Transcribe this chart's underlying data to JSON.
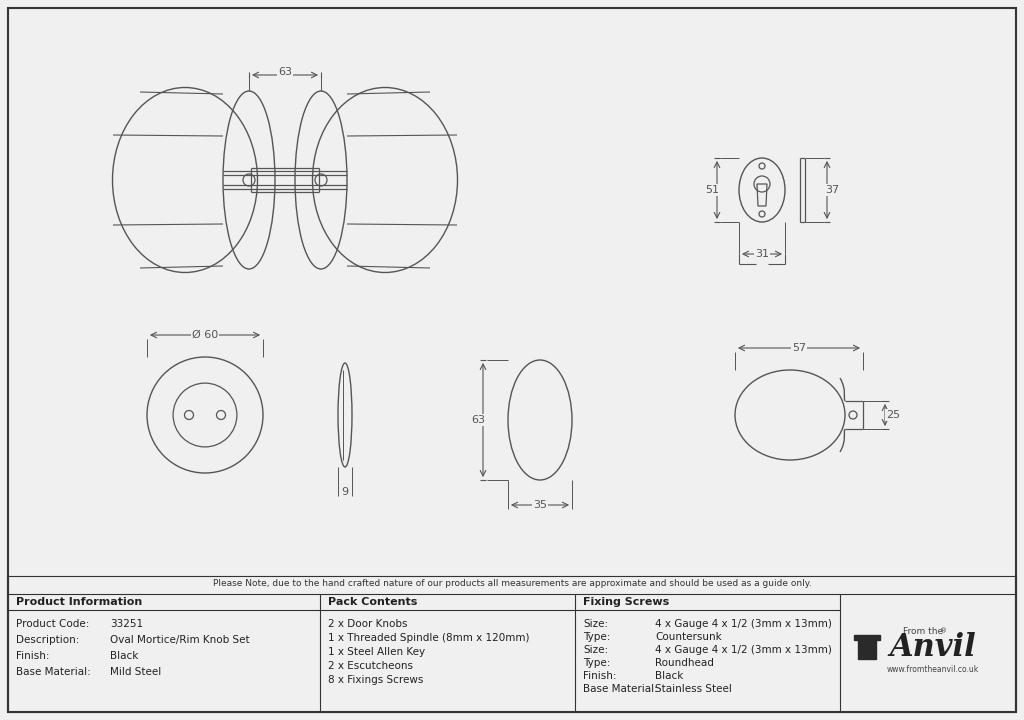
{
  "bg_color": "#f0f0f0",
  "line_color": "#555555",
  "border_color": "#333333",
  "note": "Please Note, due to the hand crafted nature of our products all measurements are approximate and should be used as a guide only.",
  "product_info": [
    [
      "Product Code:",
      "33251"
    ],
    [
      "Description:",
      "Oval Mortice/Rim Knob Set"
    ],
    [
      "Finish:",
      "Black"
    ],
    [
      "Base Material:",
      "Mild Steel"
    ]
  ],
  "pack_contents": [
    "2 x Door Knobs",
    "1 x Threaded Spindle (8mm x 120mm)",
    "1 x Steel Allen Key",
    "2 x Escutcheons",
    "8 x Fixings Screws"
  ],
  "fixing_screws": [
    [
      "Size:",
      "4 x Gauge 4 x 1/2 (3mm x 13mm)"
    ],
    [
      "Type:",
      "Countersunk"
    ],
    [
      "Size:",
      "4 x Gauge 4 x 1/2 (3mm x 13mm)"
    ],
    [
      "Type:",
      "Roundhead"
    ],
    [
      "Finish:",
      "Black"
    ],
    [
      "Base Material:",
      "Stainless Steel"
    ]
  ]
}
